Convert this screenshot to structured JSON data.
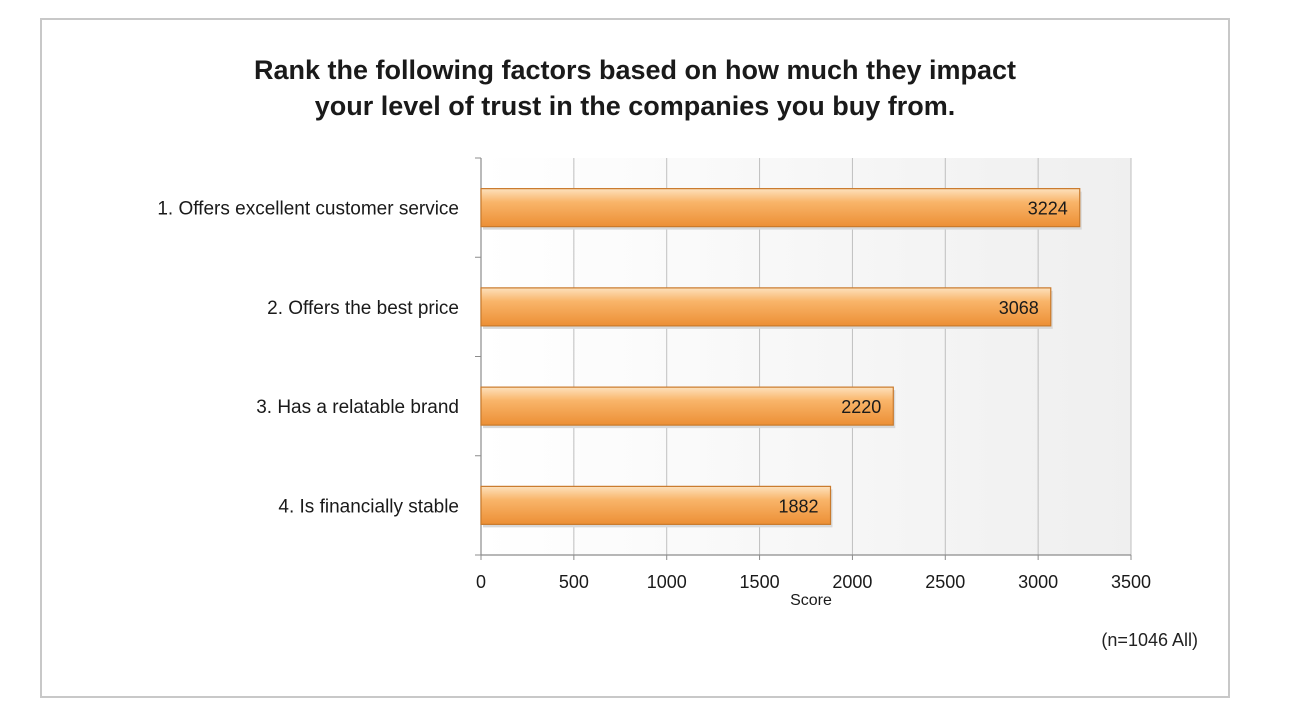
{
  "chart_data": {
    "type": "bar",
    "orientation": "horizontal",
    "title_lines": [
      "Rank the following factors based on how much they impact",
      "your level of trust in the companies you buy from."
    ],
    "categories": [
      "1. Offers excellent customer service",
      "2. Offers the best price",
      "3. Has a relatable brand",
      "4. Is financially stable"
    ],
    "values": [
      3224,
      3068,
      2220,
      1882
    ],
    "xlabel": "Score",
    "ylabel": "",
    "xlim": [
      0,
      3500
    ],
    "xticks": [
      0,
      500,
      1000,
      1500,
      2000,
      2500,
      3000,
      3500
    ],
    "grid": true,
    "data_labels": true,
    "note": "(n=1046 All)",
    "colors": {
      "bar_fill": "#f5a956",
      "bar_stroke": "#c97a2c",
      "grid": "#bfbfbf"
    }
  }
}
